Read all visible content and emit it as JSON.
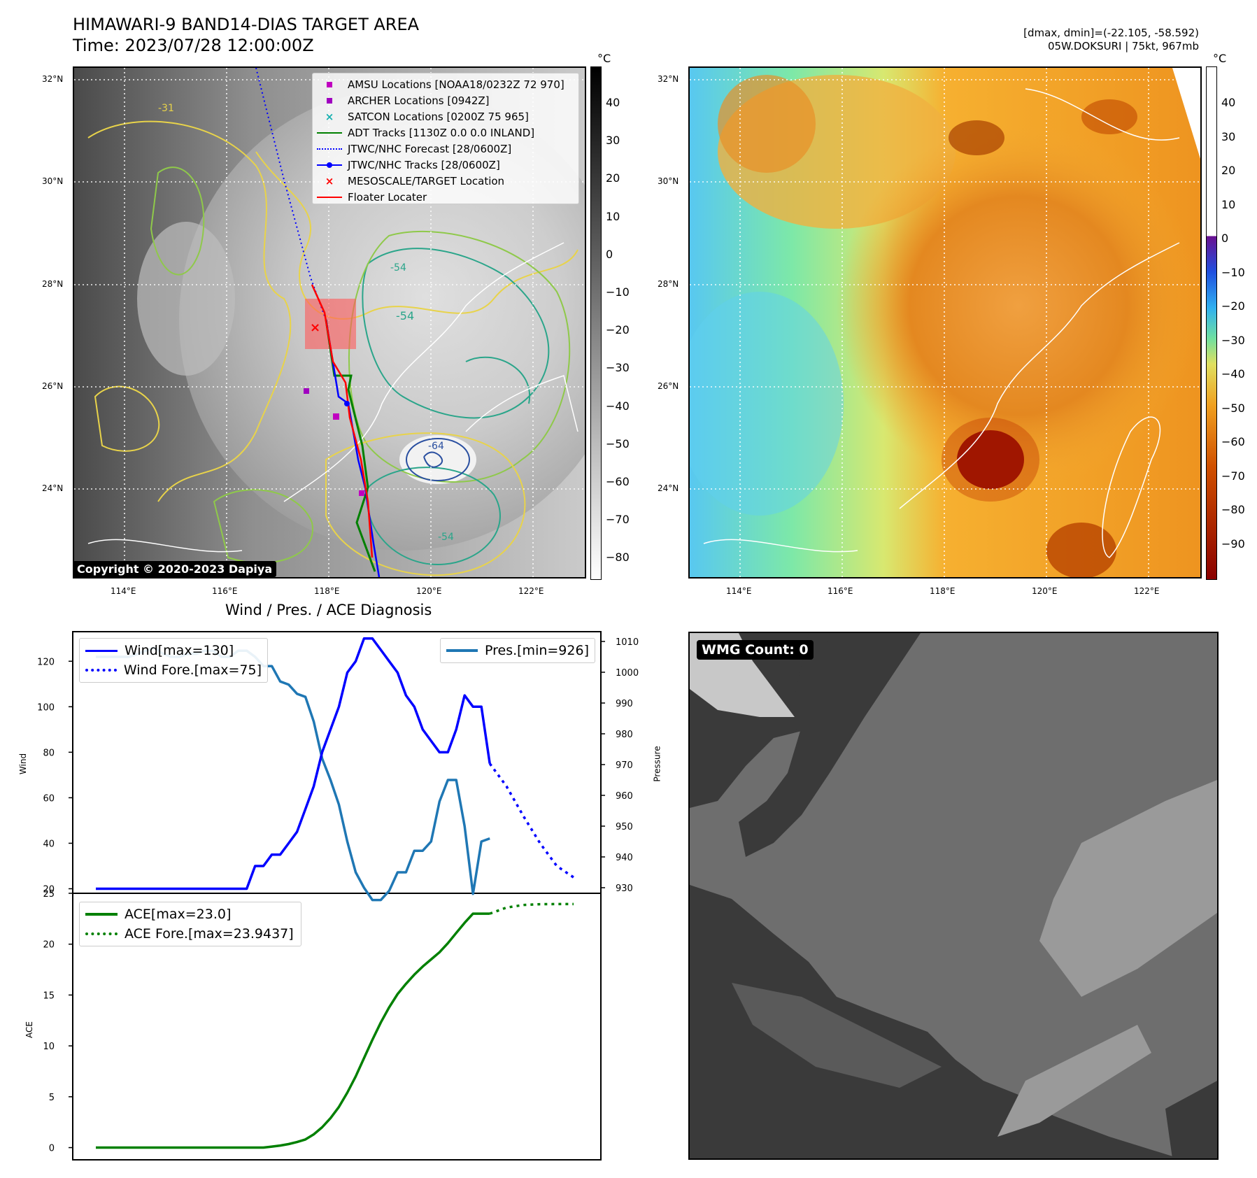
{
  "header": {
    "title_line1": "HIMAWARI-9 BAND14-DIAS TARGET AREA",
    "title_line2": "Time: 2023/07/28 12:00:00Z",
    "right_line1": "[dmax, dmin]=(-22.105, -58.592)",
    "right_line2": "05W.DOKSURI | 75kt, 967mb"
  },
  "maps": {
    "lat_labels": [
      "32°N",
      "30°N",
      "28°N",
      "26°N",
      "24°N"
    ],
    "lon_labels": [
      "114°E",
      "116°E",
      "118°E",
      "120°E",
      "122°E"
    ],
    "unit": "°C",
    "gray_colorbar_ticks": [
      "40",
      "30",
      "20",
      "10",
      "0",
      "−10",
      "−20",
      "−30",
      "−40",
      "−50",
      "−60",
      "−70",
      "−80"
    ],
    "color_colorbar_ticks": [
      "40",
      "30",
      "20",
      "10",
      "0",
      "−10",
      "−20",
      "−30",
      "−40",
      "−50",
      "−60",
      "−70",
      "−80",
      "−90"
    ],
    "copyright": "Copyright © 2020-2023 Dapiya",
    "contour_labels": [
      "-54",
      "-31",
      "-54",
      "-64",
      "-54"
    ],
    "legend": [
      {
        "label": "AMSU Locations [NOAA18/0232Z 72 970]",
        "color": "#c000c0",
        "marker": "square"
      },
      {
        "label": "ARCHER Locations [0942Z]",
        "color": "#a000c0",
        "marker": "square"
      },
      {
        "label": "SATCON Locations [0200Z 75 965]",
        "color": "#17b0b0",
        "marker": "x"
      },
      {
        "label": "ADT Tracks [1130Z 0.0 0.0 INLAND]",
        "color": "#008000",
        "marker": "line"
      },
      {
        "label": "JTWC/NHC Forecast [28/0600Z]",
        "color": "#0000ff",
        "marker": "dotted"
      },
      {
        "label": "JTWC/NHC Tracks [28/0600Z]",
        "color": "#0000ff",
        "marker": "line-dot"
      },
      {
        "label": "MESOSCALE/TARGET Location",
        "color": "#ff0000",
        "marker": "x"
      },
      {
        "label": "Floater Locater",
        "color": "#ff0000",
        "marker": "line"
      }
    ]
  },
  "diagnosis": {
    "title": "Wind / Pres. / ACE Diagnosis",
    "wind_axis_label": "Wind",
    "pressure_axis_label": "Pressure",
    "ace_axis_label": "ACE",
    "legend_wind": "Wind[max=130]",
    "legend_wind_fore": "Wind Fore.[max=75]",
    "legend_pres": "Pres.[min=926]",
    "legend_ace": "ACE[max=23.0]",
    "legend_ace_fore": "ACE Fore.[max=23.9437]"
  },
  "wmg": {
    "label": "WMG Count: 0"
  },
  "chart_data": [
    {
      "type": "line",
      "title": "Wind / Pres. / ACE Diagnosis",
      "ylabel": "Wind",
      "ylim": [
        18,
        133
      ],
      "yticks": [
        20,
        40,
        60,
        80,
        100,
        120
      ],
      "series": [
        {
          "name": "Wind[max=130]",
          "color": "#0000ff",
          "style": "solid",
          "x": [
            0,
            1,
            2,
            3,
            4,
            5,
            6,
            7,
            8,
            9,
            10,
            11,
            12,
            13,
            14,
            15,
            16,
            17,
            18,
            19,
            20,
            21,
            22,
            23,
            24,
            25,
            26,
            27,
            28,
            29,
            30,
            31,
            32,
            33,
            34,
            35,
            36,
            37,
            38,
            39,
            40,
            41,
            42,
            43,
            44,
            45,
            46,
            47
          ],
          "values": [
            20,
            20,
            20,
            20,
            20,
            20,
            20,
            20,
            20,
            20,
            20,
            20,
            20,
            20,
            20,
            20,
            20,
            20,
            20,
            30,
            30,
            35,
            35,
            40,
            45,
            55,
            65,
            80,
            90,
            100,
            115,
            120,
            130,
            130,
            125,
            120,
            115,
            105,
            100,
            90,
            85,
            80,
            80,
            90,
            105,
            100,
            100,
            75
          ]
        },
        {
          "name": "Wind Fore.[max=75]",
          "color": "#0000ff",
          "style": "dotted",
          "x": [
            47,
            49,
            51,
            53,
            55,
            57
          ],
          "values": [
            75,
            65,
            52,
            40,
            30,
            25
          ]
        }
      ],
      "secondary_axis": {
        "ylabel": "Pressure",
        "ylim": [
          925,
          1010
        ],
        "yticks": [
          930,
          940,
          950,
          960,
          970,
          980,
          990,
          1000,
          1010
        ],
        "series": [
          {
            "name": "Pres.[min=926]",
            "color": "#1f77b4",
            "x": [
              0,
              1,
              2,
              3,
              4,
              5,
              6,
              7,
              8,
              9,
              10,
              11,
              12,
              13,
              14,
              15,
              16,
              17,
              18,
              19,
              20,
              21,
              22,
              23,
              24,
              25,
              26,
              27,
              28,
              29,
              30,
              31,
              32,
              33,
              34,
              35,
              36,
              37,
              38,
              39,
              40,
              41,
              42,
              43,
              44,
              45,
              46,
              47
            ],
            "values": [
              1005,
              1005,
              1005,
              1005,
              1005,
              1006,
              1007,
              1008,
              1006,
              1005,
              1005,
              1006,
              1006,
              1007,
              1007,
              1005,
              1005,
              1007,
              1007,
              1005,
              1002,
              1002,
              997,
              996,
              993,
              992,
              984,
              972,
              965,
              957,
              945,
              935,
              930,
              926,
              926,
              929,
              935,
              935,
              942,
              942,
              945,
              958,
              965,
              965,
              950,
              928,
              945,
              946
            ]
          }
        ]
      }
    },
    {
      "type": "line",
      "ylabel": "ACE",
      "ylim": [
        -1.2,
        25
      ],
      "yticks": [
        0,
        5,
        10,
        15,
        20,
        25
      ],
      "series": [
        {
          "name": "ACE[max=23.0]",
          "color": "#008000",
          "style": "solid",
          "x": [
            0,
            1,
            2,
            3,
            4,
            5,
            6,
            7,
            8,
            9,
            10,
            11,
            12,
            13,
            14,
            15,
            16,
            17,
            18,
            19,
            20,
            21,
            22,
            23,
            24,
            25,
            26,
            27,
            28,
            29,
            30,
            31,
            32,
            33,
            34,
            35,
            36,
            37,
            38,
            39,
            40,
            41,
            42,
            43,
            44,
            45,
            46,
            47
          ],
          "values": [
            0,
            0,
            0,
            0,
            0,
            0,
            0,
            0,
            0,
            0,
            0,
            0,
            0,
            0,
            0,
            0,
            0,
            0,
            0,
            0,
            0,
            0.1,
            0.2,
            0.35,
            0.55,
            0.8,
            1.3,
            2.0,
            2.9,
            4.0,
            5.4,
            7.0,
            8.8,
            10.6,
            12.3,
            13.8,
            15.1,
            16.1,
            17.0,
            17.8,
            18.5,
            19.2,
            20.1,
            21.1,
            22.1,
            23.0,
            23.0,
            23.0
          ]
        },
        {
          "name": "ACE Fore.[max=23.9437]",
          "color": "#008000",
          "style": "dotted",
          "x": [
            47,
            49,
            51,
            53,
            55,
            57
          ],
          "values": [
            23.0,
            23.6,
            23.85,
            23.93,
            23.94,
            23.9437
          ]
        }
      ]
    }
  ]
}
